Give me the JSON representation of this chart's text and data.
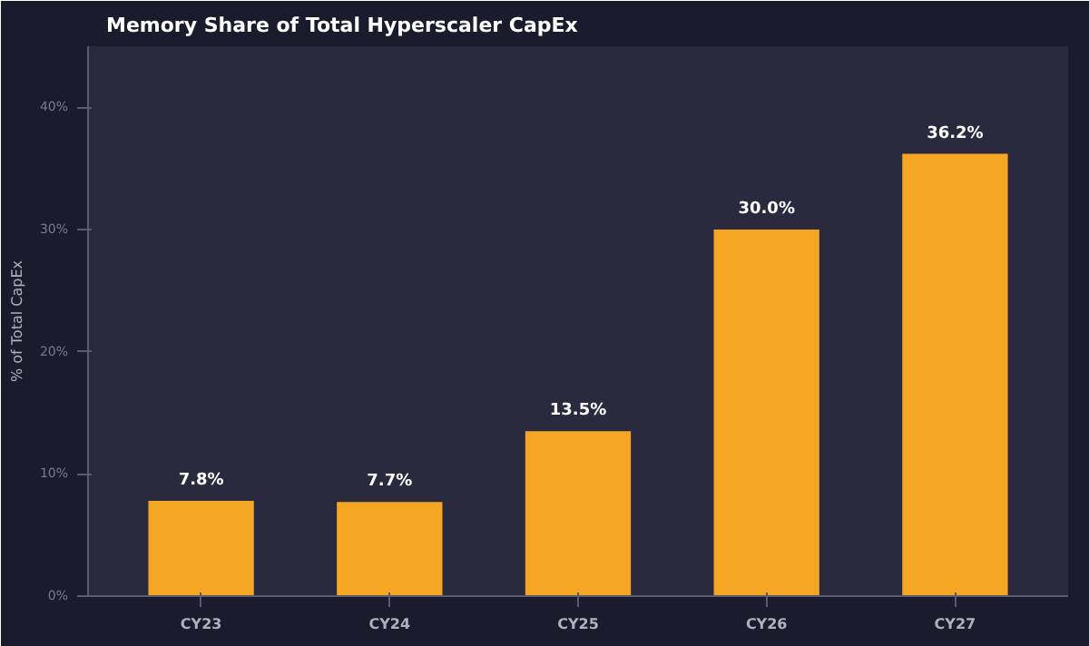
{
  "chart_data": {
    "type": "bar",
    "title": "Memory Share of Total Hyperscaler CapEx",
    "ylabel": "% of Total CapEx",
    "categories": [
      "CY23",
      "CY24",
      "CY25",
      "CY26",
      "CY27"
    ],
    "values": [
      7.8,
      7.7,
      13.5,
      30.0,
      36.2
    ],
    "value_labels": [
      "7.8%",
      "7.7%",
      "13.5%",
      "30.0%",
      "36.2%"
    ],
    "color": "#f5a623",
    "ylim": [
      0,
      45
    ],
    "yticks": [
      {
        "value": 0,
        "label": "0%"
      },
      {
        "value": 10,
        "label": "10%"
      },
      {
        "value": 20,
        "label": "20%"
      },
      {
        "value": 30,
        "label": "30%"
      },
      {
        "value": 40,
        "label": "40%"
      }
    ],
    "grid": false
  }
}
